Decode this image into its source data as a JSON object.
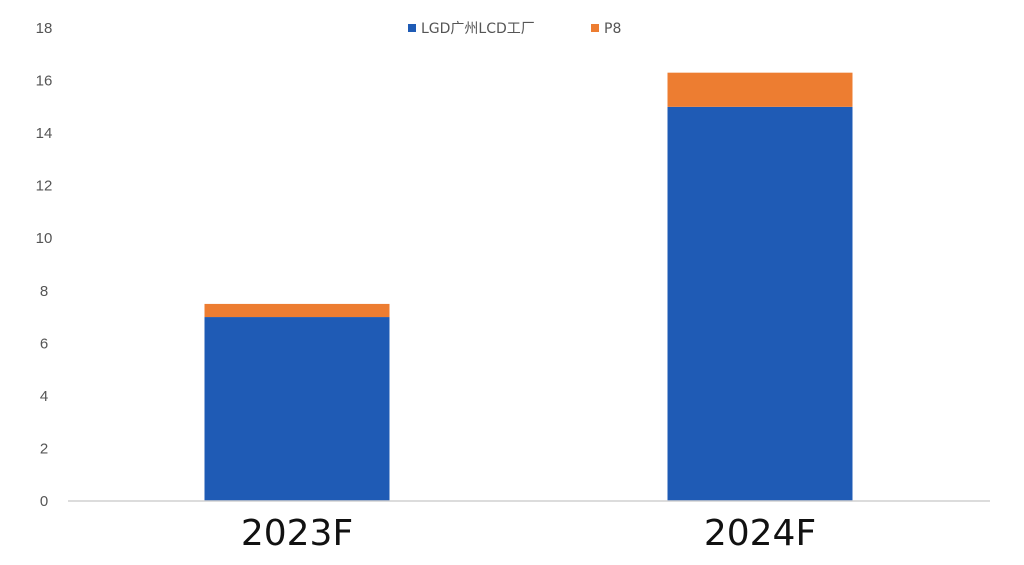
{
  "chart_data": {
    "type": "bar",
    "stacked": true,
    "categories": [
      "2023F",
      "2024F"
    ],
    "series": [
      {
        "name": "LGD广州LCD工厂",
        "values": [
          7.0,
          15.0
        ],
        "color": "#1F5BB5"
      },
      {
        "name": "P8",
        "values": [
          0.5,
          1.3
        ],
        "color": "#ED7D31"
      }
    ],
    "title": "",
    "xlabel": "",
    "ylabel": "",
    "ylim": [
      0,
      18
    ],
    "yticks": [
      0,
      2,
      4,
      6,
      8,
      10,
      12,
      14,
      16,
      18
    ],
    "grid": false,
    "legend_position": "top-center"
  }
}
